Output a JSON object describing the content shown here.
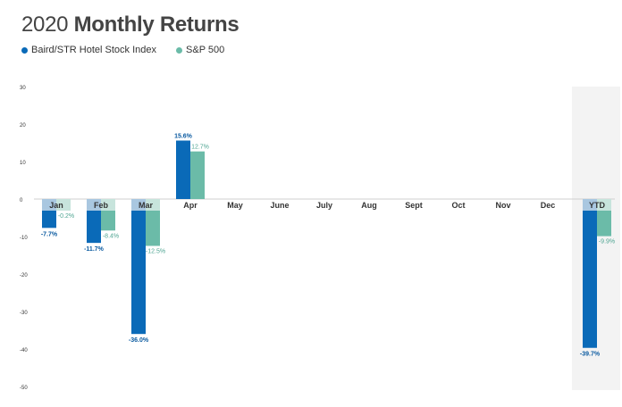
{
  "header": {
    "title_year": "2020",
    "title_rest": "Monthly Returns"
  },
  "colors": {
    "baird": "#0a6ab8",
    "sp500": "#6bbba8",
    "header_band": "#a9c7e0",
    "ytd_band": "#f3f3f3"
  },
  "chart_data": {
    "type": "bar",
    "title": "2020 Monthly Returns",
    "categories": [
      "Jan",
      "Feb",
      "Mar",
      "Apr",
      "May",
      "June",
      "July",
      "Aug",
      "Sept",
      "Oct",
      "Nov",
      "Dec",
      "YTD"
    ],
    "series": [
      {
        "name": "Baird/STR Hotel Stock Index",
        "values": [
          -7.7,
          -11.7,
          -36.0,
          15.6,
          null,
          null,
          null,
          null,
          null,
          null,
          null,
          null,
          -39.7
        ],
        "labels": [
          "-7.7%",
          "-11.7%",
          "-36.0%",
          "15.6%",
          "",
          "",
          "",
          "",
          "",
          "",
          "",
          "",
          "-39.7%"
        ]
      },
      {
        "name": "S&P 500",
        "values": [
          -0.2,
          -8.4,
          -12.5,
          12.7,
          null,
          null,
          null,
          null,
          null,
          null,
          null,
          null,
          -9.9
        ],
        "labels": [
          "-0.2%",
          "-8.4%",
          "-12.5%",
          "12.7%",
          "",
          "",
          "",
          "",
          "",
          "",
          "",
          "",
          "-9.9%"
        ]
      }
    ],
    "ylim": [
      -50,
      30
    ],
    "yticks": [
      30,
      20,
      10,
      0,
      -10,
      -20,
      -30,
      -40,
      -50
    ],
    "xlabel": "",
    "ylabel": "",
    "grid": false,
    "legend": "top-left"
  }
}
